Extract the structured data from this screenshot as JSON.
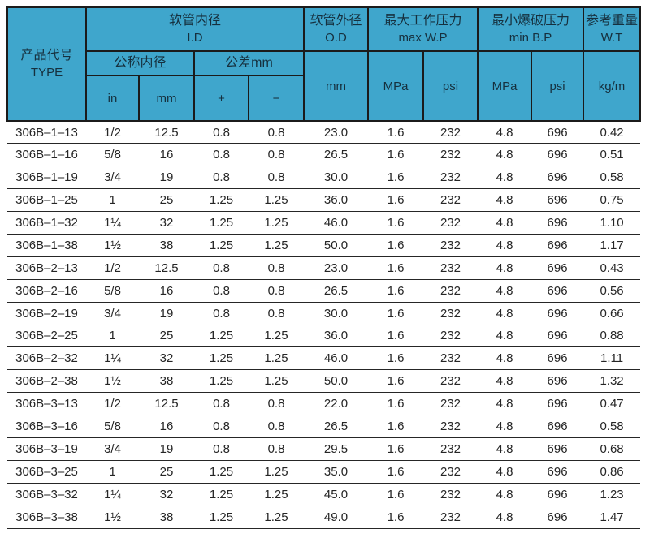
{
  "colors": {
    "header_bg": "#3fa6cc",
    "border_color": "#1b1b1b",
    "header_text": "#16303e",
    "data_text": "#252525"
  },
  "chart_data": {
    "type": "table",
    "header": {
      "type_cn": "产品代号",
      "type_en": "TYPE",
      "id_cn": "软管内径",
      "id_en": "I.D",
      "nominal_id": "公称内径",
      "tolerance": "公差mm",
      "col_in": "in",
      "col_mm": "mm",
      "col_plus": "+",
      "col_minus": "−",
      "od_cn": "软管外径",
      "od_en": "O.D",
      "od_unit": "mm",
      "maxwp_cn": "最大工作压力",
      "maxwp_en": "max W.P",
      "mpa": "MPa",
      "psi": "psi",
      "minbp_cn": "最小爆破压力",
      "minbp_en": "min B.P",
      "wt_cn": "参考重量",
      "wt_en": "W.T",
      "wt_unit": "kg/m"
    },
    "columns": [
      "TYPE",
      "I.D in",
      "I.D mm",
      "tolerance +",
      "tolerance −",
      "O.D mm",
      "max W.P MPa",
      "max W.P psi",
      "min B.P MPa",
      "min B.P psi",
      "W.T kg/m"
    ],
    "rows": [
      [
        "306B–1–13",
        "1/2",
        "12.5",
        "0.8",
        "0.8",
        "23.0",
        "1.6",
        "232",
        "4.8",
        "696",
        "0.42"
      ],
      [
        "306B–1–16",
        "5/8",
        "16",
        "0.8",
        "0.8",
        "26.5",
        "1.6",
        "232",
        "4.8",
        "696",
        "0.51"
      ],
      [
        "306B–1–19",
        "3/4",
        "19",
        "0.8",
        "0.8",
        "30.0",
        "1.6",
        "232",
        "4.8",
        "696",
        "0.58"
      ],
      [
        "306B–1–25",
        "1",
        "25",
        "1.25",
        "1.25",
        "36.0",
        "1.6",
        "232",
        "4.8",
        "696",
        "0.75"
      ],
      [
        "306B–1–32",
        "1¼",
        "32",
        "1.25",
        "1.25",
        "46.0",
        "1.6",
        "232",
        "4.8",
        "696",
        "1.10"
      ],
      [
        "306B–1–38",
        "1½",
        "38",
        "1.25",
        "1.25",
        "50.0",
        "1.6",
        "232",
        "4.8",
        "696",
        "1.17"
      ],
      [
        "306B–2–13",
        "1/2",
        "12.5",
        "0.8",
        "0.8",
        "23.0",
        "1.6",
        "232",
        "4.8",
        "696",
        "0.43"
      ],
      [
        "306B–2–16",
        "5/8",
        "16",
        "0.8",
        "0.8",
        "26.5",
        "1.6",
        "232",
        "4.8",
        "696",
        "0.56"
      ],
      [
        "306B–2–19",
        "3/4",
        "19",
        "0.8",
        "0.8",
        "30.0",
        "1.6",
        "232",
        "4.8",
        "696",
        "0.66"
      ],
      [
        "306B–2–25",
        "1",
        "25",
        "1.25",
        "1.25",
        "36.0",
        "1.6",
        "232",
        "4.8",
        "696",
        "0.88"
      ],
      [
        "306B–2–32",
        "1¼",
        "32",
        "1.25",
        "1.25",
        "46.0",
        "1.6",
        "232",
        "4.8",
        "696",
        "1.11"
      ],
      [
        "306B–2–38",
        "1½",
        "38",
        "1.25",
        "1.25",
        "50.0",
        "1.6",
        "232",
        "4.8",
        "696",
        "1.32"
      ],
      [
        "306B–3–13",
        "1/2",
        "12.5",
        "0.8",
        "0.8",
        "22.0",
        "1.6",
        "232",
        "4.8",
        "696",
        "0.47"
      ],
      [
        "306B–3–16",
        "5/8",
        "16",
        "0.8",
        "0.8",
        "26.5",
        "1.6",
        "232",
        "4.8",
        "696",
        "0.58"
      ],
      [
        "306B–3–19",
        "3/4",
        "19",
        "0.8",
        "0.8",
        "29.5",
        "1.6",
        "232",
        "4.8",
        "696",
        "0.68"
      ],
      [
        "306B–3–25",
        "1",
        "25",
        "1.25",
        "1.25",
        "35.0",
        "1.6",
        "232",
        "4.8",
        "696",
        "0.86"
      ],
      [
        "306B–3–32",
        "1¼",
        "32",
        "1.25",
        "1.25",
        "45.0",
        "1.6",
        "232",
        "4.8",
        "696",
        "1.23"
      ],
      [
        "306B–3–38",
        "1½",
        "38",
        "1.25",
        "1.25",
        "49.0",
        "1.6",
        "232",
        "4.8",
        "696",
        "1.47"
      ]
    ]
  }
}
